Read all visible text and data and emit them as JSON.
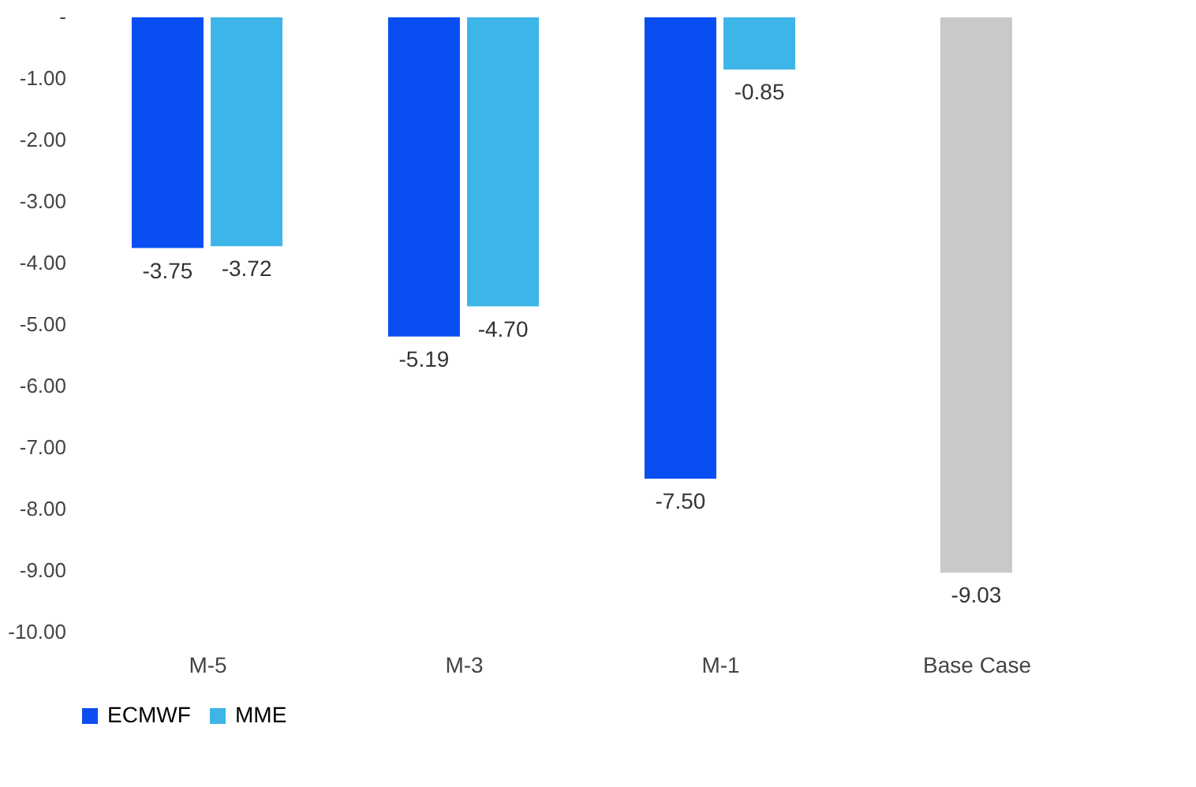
{
  "chart_data": {
    "type": "bar",
    "categories": [
      "M-5",
      "M-3",
      "M-1",
      "Base Case"
    ],
    "series": [
      {
        "name": "ECMWF",
        "color": "#0a4ef2",
        "values": [
          -3.75,
          -5.19,
          -7.5,
          null
        ],
        "value_labels": [
          "-3.75",
          "-5.19",
          "-7.50",
          null
        ]
      },
      {
        "name": "MME",
        "color": "#3db5e8",
        "values": [
          -3.72,
          -4.7,
          -0.85,
          null
        ],
        "value_labels": [
          "-3.72",
          "-4.70",
          "-0.85",
          null
        ]
      },
      {
        "color": "#c9c9c9",
        "values": [
          null,
          null,
          null,
          -9.03
        ],
        "value_labels": [
          null,
          null,
          null,
          "-9.03"
        ]
      }
    ],
    "ylim": [
      -10,
      0
    ],
    "yticks": [
      {
        "value": 0,
        "label": "-"
      },
      {
        "value": -1,
        "label": "-1.00"
      },
      {
        "value": -2,
        "label": "-2.00"
      },
      {
        "value": -3,
        "label": "-3.00"
      },
      {
        "value": -4,
        "label": "-4.00"
      },
      {
        "value": -5,
        "label": "-5.00"
      },
      {
        "value": -6,
        "label": "-6.00"
      },
      {
        "value": -7,
        "label": "-7.00"
      },
      {
        "value": -8,
        "label": "-8.00"
      },
      {
        "value": -9,
        "label": "-9.00"
      },
      {
        "value": -10,
        "label": "-10.00"
      }
    ],
    "grid": false,
    "legend": "bottom"
  }
}
